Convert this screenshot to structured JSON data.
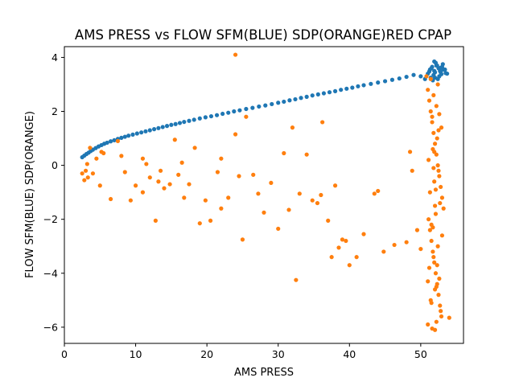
{
  "chart_data": {
    "type": "scatter",
    "title": "AMS PRESS vs FLOW SFM(BLUE) SDP(ORANGE)RED CPAP",
    "xlabel": "AMS PRESS",
    "ylabel": "FLOW SFM(BLUE) SDP(ORANGE)",
    "xlim": [
      0,
      56
    ],
    "ylim": [
      -6.6,
      4.4
    ],
    "xticks": [
      0,
      10,
      20,
      30,
      40,
      50
    ],
    "yticks": [
      -6,
      -4,
      -2,
      0,
      2,
      4
    ],
    "grid": false,
    "legend": "none",
    "series": [
      {
        "color": "#1f77b4",
        "x": [
          2.5,
          2.8,
          3.1,
          3.4,
          3.7,
          4.0,
          4.4,
          4.8,
          5.2,
          5.6,
          6.0,
          6.5,
          7.0,
          7.5,
          8.0,
          8.5,
          9.0,
          9.6,
          10.2,
          10.8,
          11.4,
          12.0,
          12.6,
          13.2,
          13.8,
          14.4,
          15.0,
          15.6,
          16.2,
          16.8,
          17.5,
          18.2,
          19.0,
          19.8,
          20.6,
          21.4,
          22.2,
          23.0,
          23.8,
          24.6,
          25.5,
          26.4,
          27.3,
          28.2,
          29.1,
          30.0,
          30.8,
          31.6,
          32.4,
          33.2,
          34.0,
          34.8,
          35.6,
          36.4,
          37.2,
          38.0,
          38.8,
          39.6,
          40.4,
          41.2,
          42.0,
          43.0,
          44.0,
          45.0,
          46.0,
          47.0,
          48.0,
          49.0,
          50.0,
          50.6,
          51.0,
          51.3,
          51.6,
          51.9,
          52.2,
          52.5,
          52.8,
          53.1,
          53.4,
          53.7,
          51.4,
          51.8,
          52.1,
          52.4,
          52.7,
          53.0,
          51.5,
          52.0,
          52.6,
          53.2,
          51.7,
          52.3,
          52.9,
          51.2,
          52.0,
          52.8,
          53.5,
          51.9
        ],
        "y": [
          0.3,
          0.36,
          0.42,
          0.47,
          0.53,
          0.58,
          0.64,
          0.7,
          0.75,
          0.8,
          0.84,
          0.89,
          0.93,
          0.98,
          1.02,
          1.06,
          1.1,
          1.14,
          1.18,
          1.22,
          1.26,
          1.3,
          1.34,
          1.38,
          1.42,
          1.46,
          1.5,
          1.53,
          1.57,
          1.61,
          1.65,
          1.69,
          1.74,
          1.78,
          1.82,
          1.86,
          1.91,
          1.95,
          2.0,
          2.04,
          2.09,
          2.13,
          2.18,
          2.22,
          2.27,
          2.32,
          2.36,
          2.41,
          2.45,
          2.5,
          2.54,
          2.59,
          2.63,
          2.67,
          2.71,
          2.75,
          2.8,
          2.84,
          2.88,
          2.93,
          2.97,
          3.02,
          3.07,
          3.12,
          3.17,
          3.22,
          3.28,
          3.35,
          3.3,
          3.2,
          3.4,
          3.55,
          3.65,
          3.5,
          3.7,
          3.6,
          3.45,
          3.75,
          3.55,
          3.4,
          3.25,
          3.35,
          3.8,
          3.2,
          3.5,
          3.65,
          3.6,
          3.45,
          3.3,
          3.55,
          3.15,
          3.7,
          3.38,
          3.48,
          3.25,
          3.62,
          3.42,
          3.85
        ]
      },
      {
        "color": "#ff7f0e",
        "x": [
          2.5,
          2.8,
          3.0,
          3.3,
          3.6,
          4.0,
          4.5,
          5.0,
          5.5,
          6.5,
          7.5,
          8.5,
          9.3,
          10.0,
          11.0,
          11.5,
          12.0,
          12.8,
          13.2,
          14.0,
          14.8,
          15.5,
          16.0,
          16.8,
          17.5,
          18.3,
          19.0,
          19.8,
          20.5,
          21.5,
          22.0,
          23.0,
          24.0,
          24.5,
          25.0,
          25.5,
          26.5,
          27.2,
          28.0,
          29.0,
          30.0,
          30.8,
          31.5,
          32.0,
          33.0,
          34.0,
          34.8,
          35.5,
          36.0,
          37.0,
          37.5,
          38.0,
          38.5,
          39.0,
          39.5,
          40.0,
          41.0,
          42.0,
          43.5,
          44.0,
          44.8,
          46.3,
          48.0,
          48.5,
          48.8,
          49.5,
          50.0,
          51.0,
          54.0,
          24.0,
          22.0,
          8.0,
          11.0,
          13.5,
          3.2,
          5.2,
          16.5,
          32.5,
          36.2
        ],
        "y": [
          -0.3,
          -0.55,
          -0.2,
          -0.45,
          0.65,
          -0.3,
          0.25,
          -0.75,
          0.45,
          -1.25,
          0.9,
          -0.25,
          -1.3,
          -0.75,
          -1.0,
          0.05,
          -0.45,
          -2.05,
          -0.6,
          -0.85,
          -0.7,
          0.95,
          -0.35,
          -1.2,
          -0.7,
          0.65,
          -2.15,
          -1.3,
          -2.05,
          -0.25,
          -1.6,
          -1.2,
          1.15,
          -0.4,
          -2.75,
          1.8,
          -0.35,
          -1.05,
          -1.75,
          -0.65,
          -2.35,
          0.45,
          -1.65,
          1.4,
          -1.05,
          0.4,
          -1.3,
          -1.4,
          -1.1,
          -2.05,
          -3.4,
          -0.75,
          -3.05,
          -2.75,
          -2.8,
          -3.7,
          -3.4,
          -2.55,
          -1.05,
          -0.95,
          -3.2,
          -2.95,
          -2.85,
          0.5,
          -0.2,
          -2.4,
          -3.1,
          -4.3,
          -5.65,
          4.1,
          0.25,
          0.35,
          0.25,
          -0.2,
          0.05,
          0.5,
          0.1,
          -4.25,
          1.6
        ]
      },
      {
        "color": "#ff7f0e",
        "note_cluster": "dense vertical band at AMS PRESS ~52",
        "x": [
          50.8,
          51.0,
          51.2,
          51.4,
          51.6,
          51.8,
          52.0,
          52.2,
          52.4,
          52.6,
          52.8,
          53.0,
          53.2,
          51.1,
          51.3,
          51.5,
          51.7,
          51.9,
          52.1,
          52.3,
          52.5,
          52.7,
          52.9,
          51.0,
          51.6,
          52.2,
          52.8,
          51.4,
          52.0,
          52.6,
          51.2,
          51.8,
          52.4,
          53.0,
          51.5,
          52.1,
          52.7,
          51.3,
          51.9,
          52.5,
          51.1,
          51.7,
          52.3,
          52.9,
          51.6,
          52.2,
          51.8,
          52.4,
          51.4,
          52.0,
          52.6,
          51.9,
          52.1,
          51.7,
          52.3,
          51.5,
          52.5,
          51.8,
          52.0,
          52.2
        ],
        "y": [
          3.3,
          2.8,
          2.4,
          2.0,
          1.6,
          1.2,
          0.8,
          0.4,
          0.0,
          -0.4,
          -0.8,
          -1.2,
          -1.6,
          -2.0,
          -2.4,
          -2.8,
          -3.2,
          -3.6,
          -4.0,
          -4.4,
          -4.8,
          -5.2,
          -5.6,
          -5.9,
          -6.05,
          -5.8,
          -5.4,
          -5.0,
          -4.6,
          -4.2,
          -3.8,
          -3.4,
          -3.0,
          -2.6,
          -2.2,
          -1.8,
          -1.4,
          -1.0,
          -0.6,
          -0.2,
          0.2,
          0.6,
          1.0,
          1.4,
          1.8,
          2.2,
          2.6,
          3.0,
          3.2,
          -6.1,
          1.9,
          0.5,
          -0.9,
          -2.3,
          -3.7,
          -5.1,
          1.3,
          -0.1,
          -1.5,
          -4.5
        ]
      }
    ]
  }
}
